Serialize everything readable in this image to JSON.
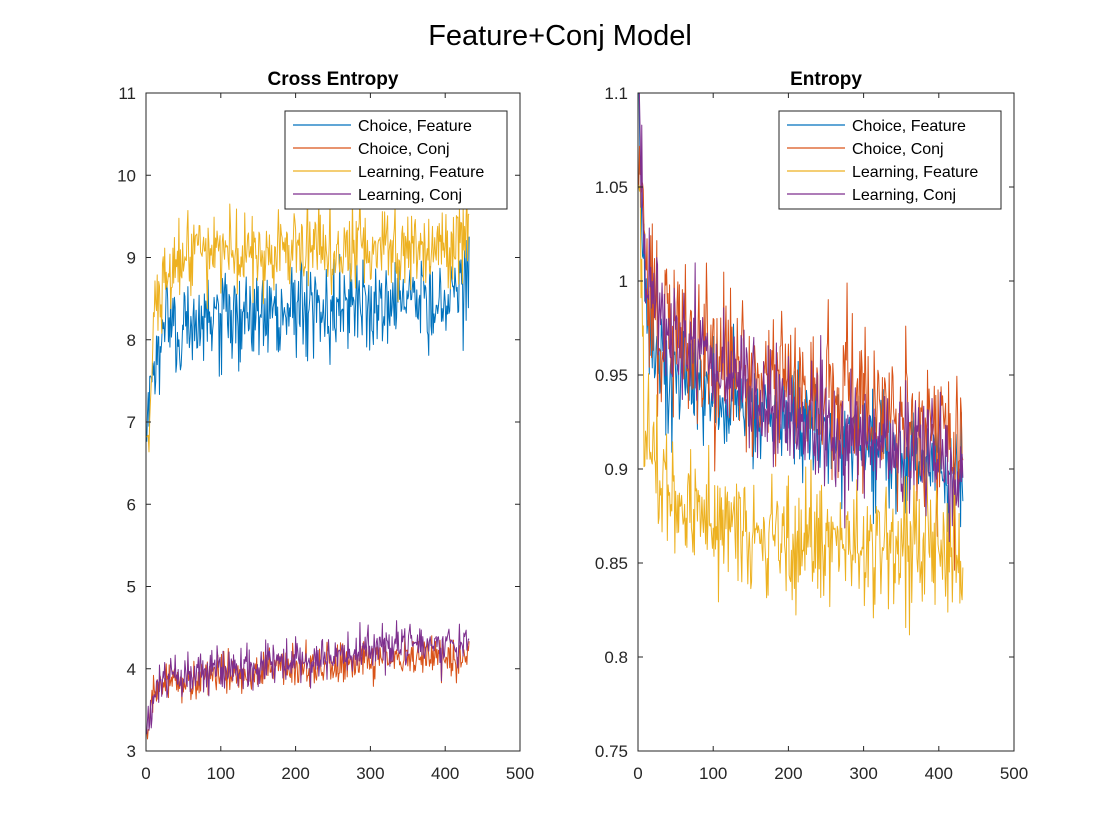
{
  "figure": {
    "title": "Feature+Conj Model"
  },
  "colors": {
    "series": [
      "#0072BD",
      "#D95319",
      "#EDB120",
      "#7E2F8E"
    ],
    "axes": "#262626",
    "background": "#ffffff"
  },
  "chart_data": [
    {
      "type": "line",
      "title": "Cross Entropy",
      "xlabel": "",
      "ylabel": "",
      "xlim": [
        0,
        500
      ],
      "ylim": [
        3,
        11
      ],
      "xticks": [
        0,
        100,
        200,
        300,
        400,
        500
      ],
      "yticks": [
        3,
        4,
        5,
        6,
        7,
        8,
        9,
        10,
        11
      ],
      "grid": false,
      "legend_position": "top-right",
      "n_points": 432,
      "series": [
        {
          "name": "Choice, Feature",
          "key_points": [
            [
              1,
              6.9
            ],
            [
              10,
              7.5
            ],
            [
              20,
              8.1
            ],
            [
              50,
              8.2
            ],
            [
              100,
              8.2
            ],
            [
              200,
              8.4
            ],
            [
              300,
              8.45
            ],
            [
              400,
              8.5
            ],
            [
              432,
              8.8
            ]
          ],
          "noise_sd": 0.28
        },
        {
          "name": "Choice, Conj",
          "key_points": [
            [
              1,
              3.3
            ],
            [
              10,
              3.65
            ],
            [
              20,
              3.8
            ],
            [
              50,
              3.85
            ],
            [
              100,
              3.95
            ],
            [
              200,
              4.0
            ],
            [
              300,
              4.1
            ],
            [
              400,
              4.12
            ],
            [
              432,
              4.15
            ]
          ],
          "noise_sd": 0.12
        },
        {
          "name": "Learning, Feature",
          "key_points": [
            [
              1,
              6.6
            ],
            [
              10,
              8.0
            ],
            [
              20,
              8.7
            ],
            [
              50,
              9.0
            ],
            [
              100,
              9.05
            ],
            [
              200,
              9.1
            ],
            [
              300,
              9.15
            ],
            [
              400,
              9.2
            ],
            [
              432,
              9.3
            ]
          ],
          "noise_sd": 0.25
        },
        {
          "name": "Learning, Conj",
          "key_points": [
            [
              1,
              3.3
            ],
            [
              10,
              3.7
            ],
            [
              20,
              3.85
            ],
            [
              50,
              3.9
            ],
            [
              100,
              4.0
            ],
            [
              200,
              4.1
            ],
            [
              300,
              4.25
            ],
            [
              400,
              4.3
            ],
            [
              432,
              4.35
            ]
          ],
          "noise_sd": 0.13
        }
      ]
    },
    {
      "type": "line",
      "title": "Entropy",
      "xlabel": "",
      "ylabel": "",
      "xlim": [
        0,
        500
      ],
      "ylim": [
        0.75,
        1.1
      ],
      "xticks": [
        0,
        100,
        200,
        300,
        400,
        500
      ],
      "yticks": [
        0.75,
        0.8,
        0.85,
        0.9,
        0.95,
        1,
        1.05,
        1.1
      ],
      "grid": false,
      "legend_position": "top-right",
      "n_points": 432,
      "series": [
        {
          "name": "Choice, Feature",
          "key_points": [
            [
              1,
              1.08
            ],
            [
              10,
              0.98
            ],
            [
              30,
              0.955
            ],
            [
              100,
              0.94
            ],
            [
              200,
              0.925
            ],
            [
              300,
              0.915
            ],
            [
              400,
              0.905
            ],
            [
              432,
              0.895
            ]
          ],
          "noise_sd": 0.014
        },
        {
          "name": "Choice, Conj",
          "key_points": [
            [
              1,
              1.09
            ],
            [
              10,
              1.0
            ],
            [
              30,
              0.98
            ],
            [
              100,
              0.96
            ],
            [
              200,
              0.94
            ],
            [
              300,
              0.935
            ],
            [
              400,
              0.925
            ],
            [
              432,
              0.92
            ]
          ],
          "noise_sd": 0.02
        },
        {
          "name": "Learning, Feature",
          "key_points": [
            [
              1,
              1.05
            ],
            [
              10,
              0.93
            ],
            [
              30,
              0.89
            ],
            [
              100,
              0.87
            ],
            [
              200,
              0.865
            ],
            [
              300,
              0.86
            ],
            [
              400,
              0.855
            ],
            [
              432,
              0.855
            ]
          ],
          "noise_sd": 0.018
        },
        {
          "name": "Learning, Conj",
          "key_points": [
            [
              1,
              1.1
            ],
            [
              10,
              1.0
            ],
            [
              30,
              0.98
            ],
            [
              100,
              0.955
            ],
            [
              200,
              0.93
            ],
            [
              300,
              0.915
            ],
            [
              400,
              0.905
            ],
            [
              432,
              0.895
            ]
          ],
          "noise_sd": 0.016
        }
      ]
    }
  ]
}
